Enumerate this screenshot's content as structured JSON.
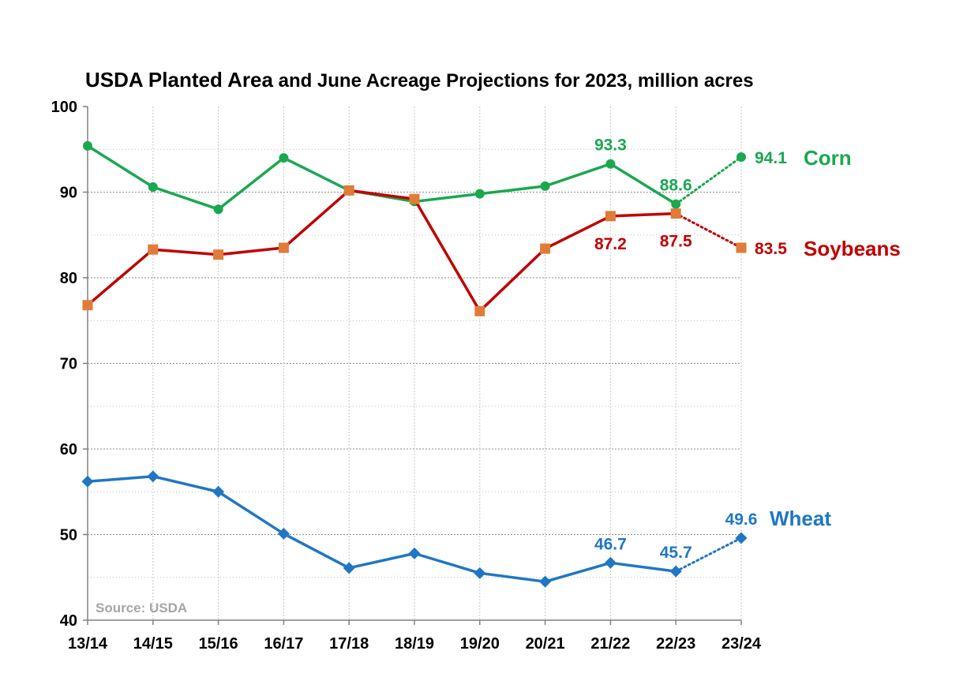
{
  "chart_data": {
    "type": "line",
    "title": "USDA Planted Area and June Acreage Projections for 2023, million acres",
    "title_part1": "USDA Planted Area",
    "title_part2": " and June Acreage Projections for 2023, million acres",
    "source": "Source: USDA",
    "categories": [
      "13/14",
      "14/15",
      "15/16",
      "16/17",
      "17/18",
      "18/19",
      "19/20",
      "20/21",
      "21/22",
      "22/23",
      "23/24"
    ],
    "ylim": [
      40,
      100
    ],
    "yticks": [
      "40",
      "50",
      "60",
      "70",
      "80",
      "90",
      "100"
    ],
    "grid": true,
    "series": [
      {
        "name": "Corn",
        "color": "#1aa84f",
        "marker": "circle",
        "values": [
          95.4,
          90.6,
          88.0,
          94.0,
          90.2,
          88.9,
          89.8,
          90.7,
          93.3,
          88.6,
          94.1
        ],
        "projection_from_index": 9,
        "labels": [
          {
            "index": 8,
            "text": "93.3",
            "pos": "above"
          },
          {
            "index": 9,
            "text": "88.6",
            "pos": "above"
          },
          {
            "index": 10,
            "text": "94.1",
            "pos": "right"
          }
        ]
      },
      {
        "name": "Soybeans",
        "color": "#c00000",
        "marker_color": "#e07b39",
        "marker": "square",
        "values": [
          76.8,
          83.3,
          82.7,
          83.5,
          90.2,
          89.2,
          76.1,
          83.4,
          87.2,
          87.5,
          83.5
        ],
        "projection_from_index": 9,
        "labels": [
          {
            "index": 8,
            "text": "87.2",
            "pos": "below"
          },
          {
            "index": 9,
            "text": "87.5",
            "pos": "below"
          },
          {
            "index": 10,
            "text": "83.5",
            "pos": "right"
          }
        ]
      },
      {
        "name": "Wheat",
        "color": "#1f77c4",
        "marker": "diamond",
        "values": [
          56.2,
          56.8,
          55.0,
          50.1,
          46.1,
          47.8,
          45.5,
          44.5,
          46.7,
          45.7,
          49.6
        ],
        "projection_from_index": 9,
        "labels": [
          {
            "index": 8,
            "text": "46.7",
            "pos": "above"
          },
          {
            "index": 9,
            "text": "45.7",
            "pos": "above"
          },
          {
            "index": 10,
            "text": "49.6",
            "pos": "above"
          }
        ]
      }
    ]
  }
}
